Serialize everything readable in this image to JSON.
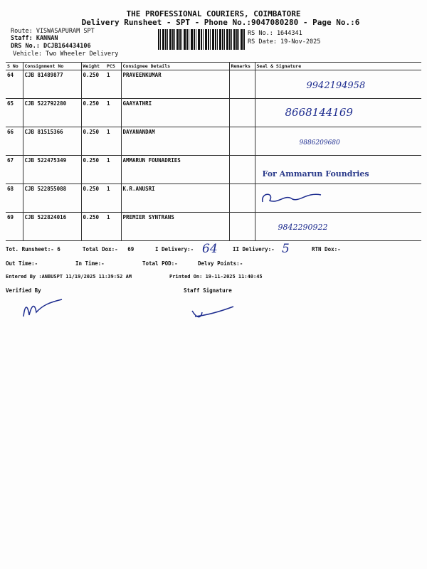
{
  "header": {
    "company": "THE PROFESSIONAL COURIERS, COIMBATORE",
    "subtitle": "Delivery Runsheet - SPT - Phone No.:9047080280 - Page No.:6",
    "route": "Route: VISWASAPURAM SPT",
    "staff": "Staff: KANNAN",
    "drs": "DRS No.: DCJB164434106",
    "vehicle": "Vehicle: Two Wheeler Delivery",
    "rs_no": "RS No.: 1644341",
    "rs_date": "RS Date: 19-Nov-2025"
  },
  "table": {
    "columns": [
      "S No",
      "Consignment No",
      "Weight",
      "PCS",
      "Consignee Details",
      "Remarks",
      "Seal & Signature"
    ],
    "rows": [
      {
        "sno": "64",
        "cn": "CJB 81489877",
        "weight": "0.250",
        "pcs": "1",
        "consignee": "PRAVEENKUMAR",
        "sign": "9942194958"
      },
      {
        "sno": "65",
        "cn": "CJB 522792280",
        "weight": "0.250",
        "pcs": "1",
        "consignee": "GAAYATHRI",
        "sign": "8668144169"
      },
      {
        "sno": "66",
        "cn": "CJB 81515366",
        "weight": "0.250",
        "pcs": "1",
        "consignee": "DAYANANDAM",
        "sign": "9886209680"
      },
      {
        "sno": "67",
        "cn": "CJB 522475349",
        "weight": "0.250",
        "pcs": "1",
        "consignee": "AMMARUN FOUNADRIES",
        "sign": "For Ammarun Foundries"
      },
      {
        "sno": "68",
        "cn": "CJB 522855088",
        "weight": "0.250",
        "pcs": "1",
        "consignee": "K.R.ANUSRI",
        "sign": ""
      },
      {
        "sno": "69",
        "cn": "CJB 522824016",
        "weight": "0.250",
        "pcs": "1",
        "consignee": "PREMIER SYNTRANS",
        "sign": "9842290922"
      }
    ]
  },
  "footer": {
    "tot_runsheet": "Tot. Runsheet:- 6",
    "total_dox": "Total Dox:-   69",
    "i_delivery": "I Delivery:-",
    "i_delivery_hand": "64",
    "ii_delivery": "II Delivery:-",
    "ii_delivery_hand": "5",
    "rtn_dox": "RTN Dox:-",
    "out_time": "Out Time:-",
    "in_time": "In Time:-",
    "total_pod": "Total POD:-",
    "delvy_points": "Delvy Points:-",
    "entered_by": "Entered By :ANBUSPT 11/19/2025 11:39:52 AM",
    "printed_on": "Printed On: 19-11-2025 11:40:45",
    "verified_by": "Verified By",
    "staff_signature": "Staff Signature"
  }
}
